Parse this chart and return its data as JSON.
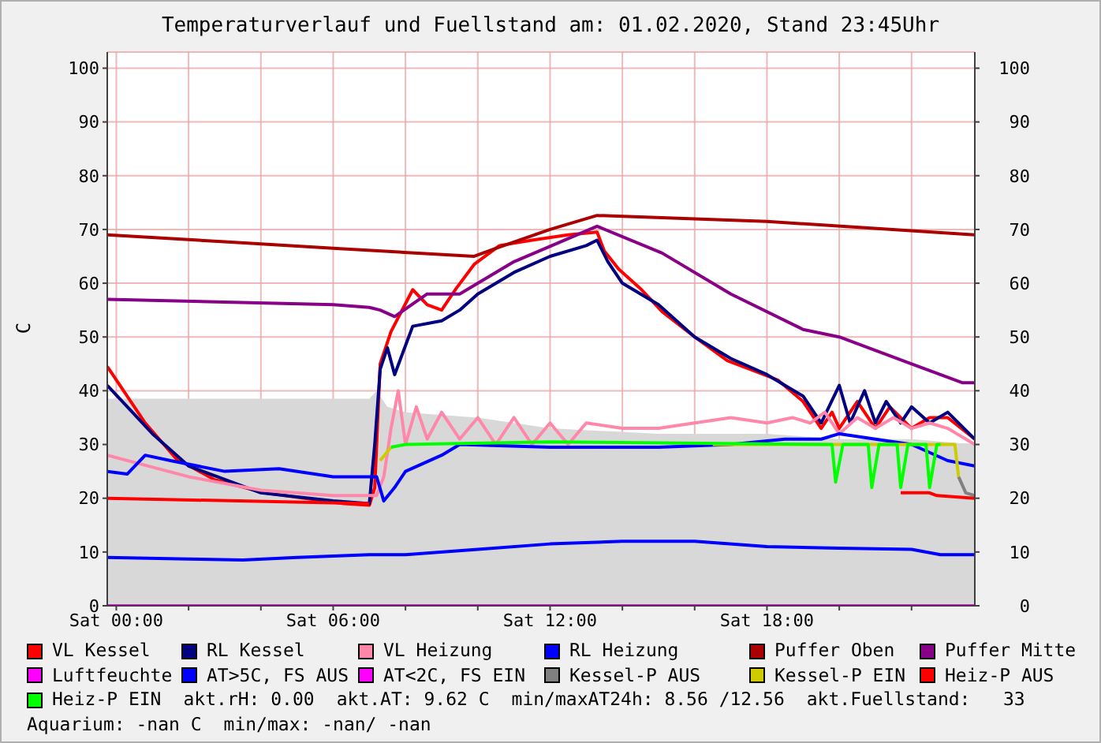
{
  "chart_data": {
    "type": "line",
    "title": "Temperaturverlauf und Fuellstand am: 01.02.2020, Stand 23:45Uhr",
    "ylabel": "C",
    "xlim": [
      "2020-01-31T23:45",
      "2020-02-01T23:45"
    ],
    "xticks": [
      {
        "value": "2020-02-01T00:00",
        "label": "Sat 00:00"
      },
      {
        "value": "2020-02-01T02:00",
        "label": null
      },
      {
        "value": "2020-02-01T04:00",
        "label": null
      },
      {
        "value": "2020-02-01T06:00",
        "label": "Sat 06:00"
      },
      {
        "value": "2020-02-01T08:00",
        "label": null
      },
      {
        "value": "2020-02-01T10:00",
        "label": null
      },
      {
        "value": "2020-02-01T12:00",
        "label": "Sat 12:00"
      },
      {
        "value": "2020-02-01T14:00",
        "label": null
      },
      {
        "value": "2020-02-01T16:00",
        "label": null
      },
      {
        "value": "2020-02-01T18:00",
        "label": "Sat 18:00"
      },
      {
        "value": "2020-02-01T20:00",
        "label": null
      },
      {
        "value": "2020-02-01T22:00",
        "label": null
      }
    ],
    "ylim": [
      0,
      103
    ],
    "yticks": [
      0,
      10,
      20,
      30,
      40,
      50,
      60,
      70,
      80,
      90,
      100
    ],
    "y2lim": [
      0,
      103
    ],
    "y2ticks": [
      0,
      10,
      20,
      30,
      40,
      50,
      60,
      70,
      80,
      90,
      100
    ],
    "grid": true,
    "legend": "bottom",
    "marker": "none",
    "line_style": "solid",
    "annotations": [
      "akt.rH: 0.00",
      "akt.AT: 9.62 C",
      "min/maxAT24h: 8.56 /12.56",
      "akt.Fuellstand:   33",
      "Aquarium: -nan C",
      "min/max: -nan/ -nan"
    ],
    "series": [
      {
        "type": "area",
        "color": "#d8d8d8",
        "x": [
          "2020-01-31T23:45",
          "2020-02-01T07:00",
          "2020-02-01T07:12",
          "2020-02-01T07:30",
          "2020-02-01T08:00",
          "2020-02-01T10:00",
          "2020-02-01T12:00",
          "2020-02-01T15:00",
          "2020-02-01T18:00",
          "2020-02-01T20:00",
          "2020-02-01T22:00",
          "2020-02-01T23:45"
        ],
        "values": [
          38.5,
          38.5,
          40,
          37,
          36,
          35,
          33,
          32,
          32,
          31,
          31,
          30
        ]
      },
      {
        "name": "VL Kessel",
        "color": "#ff0000",
        "x": [
          "2020-01-31T23:45",
          "2020-02-01T00:48",
          "2020-02-01T01:39",
          "2020-02-01T02:42",
          "2020-02-01T04:06",
          "2020-02-01T06:18",
          "2020-02-01T07:00",
          "2020-02-01T07:09",
          "2020-02-01T07:18",
          "2020-02-01T07:36",
          "2020-02-01T08:12",
          "2020-02-01T08:36",
          "2020-02-01T09:00",
          "2020-02-01T09:24",
          "2020-02-01T09:54",
          "2020-02-01T10:36",
          "2020-02-01T11:30",
          "2020-02-01T12:30",
          "2020-02-01T13:18",
          "2020-02-01T13:30",
          "2020-02-01T13:54",
          "2020-02-01T14:30",
          "2020-02-01T15:06",
          "2020-02-01T16:00",
          "2020-02-01T16:54",
          "2020-02-01T18:18",
          "2020-02-01T19:00",
          "2020-02-01T19:30",
          "2020-02-01T19:48",
          "2020-02-01T20:00",
          "2020-02-01T20:30",
          "2020-02-01T21:00",
          "2020-02-01T21:24",
          "2020-02-01T22:00",
          "2020-02-01T22:30",
          "2020-02-01T23:00",
          "2020-02-01T23:45"
        ],
        "values": [
          44.5,
          34,
          27.4,
          23.5,
          21,
          19,
          18.7,
          22,
          45,
          51,
          58.8,
          56,
          55,
          59,
          63.5,
          67,
          68,
          69,
          69.5,
          66,
          62.6,
          59,
          54.7,
          50,
          45.6,
          42,
          38,
          33,
          36,
          33,
          38,
          33,
          37,
          33,
          35,
          35,
          31
        ]
      },
      {
        "name": "RL Kessel",
        "color": "#000080",
        "x": [
          "2020-01-31T23:45",
          "2020-02-01T01:00",
          "2020-02-01T02:00",
          "2020-02-01T04:00",
          "2020-02-01T06:00",
          "2020-02-01T07:00",
          "2020-02-01T07:09",
          "2020-02-01T07:18",
          "2020-02-01T07:30",
          "2020-02-01T07:42",
          "2020-02-01T08:12",
          "2020-02-01T09:00",
          "2020-02-01T09:30",
          "2020-02-01T10:00",
          "2020-02-01T11:00",
          "2020-02-01T12:00",
          "2020-02-01T13:00",
          "2020-02-01T13:18",
          "2020-02-01T13:36",
          "2020-02-01T14:00",
          "2020-02-01T15:00",
          "2020-02-01T16:00",
          "2020-02-01T17:00",
          "2020-02-01T18:00",
          "2020-02-01T19:00",
          "2020-02-01T19:30",
          "2020-02-01T20:00",
          "2020-02-01T20:18",
          "2020-02-01T20:42",
          "2020-02-01T21:00",
          "2020-02-01T21:18",
          "2020-02-01T21:42",
          "2020-02-01T22:00",
          "2020-02-01T22:30",
          "2020-02-01T23:00",
          "2020-02-01T23:45"
        ],
        "values": [
          41,
          32,
          26,
          21,
          19.5,
          19,
          30,
          44,
          48,
          43,
          52,
          53,
          55,
          58,
          62,
          65,
          67,
          68,
          64,
          60,
          56,
          50,
          46,
          43,
          39,
          34,
          41,
          34,
          40,
          34,
          38,
          34,
          37,
          34,
          36,
          31
        ]
      },
      {
        "name": "VL Heizung",
        "color": "#ff88aa",
        "x": [
          "2020-01-31T23:45",
          "2020-02-01T02:00",
          "2020-02-01T04:00",
          "2020-02-01T06:00",
          "2020-02-01T07:12",
          "2020-02-01T07:24",
          "2020-02-01T07:36",
          "2020-02-01T07:48",
          "2020-02-01T08:00",
          "2020-02-01T08:18",
          "2020-02-01T08:36",
          "2020-02-01T09:00",
          "2020-02-01T09:30",
          "2020-02-01T10:00",
          "2020-02-01T10:30",
          "2020-02-01T11:00",
          "2020-02-01T11:30",
          "2020-02-01T12:00",
          "2020-02-01T12:30",
          "2020-02-01T13:00",
          "2020-02-01T14:00",
          "2020-02-01T15:00",
          "2020-02-01T16:00",
          "2020-02-01T17:00",
          "2020-02-01T18:00",
          "2020-02-01T18:42",
          "2020-02-01T19:12",
          "2020-02-01T19:36",
          "2020-02-01T20:00",
          "2020-02-01T20:30",
          "2020-02-01T21:00",
          "2020-02-01T21:30",
          "2020-02-01T22:00",
          "2020-02-01T22:30",
          "2020-02-01T23:00",
          "2020-02-01T23:45"
        ],
        "values": [
          28,
          24,
          21.5,
          20.5,
          20.5,
          24,
          33,
          40,
          30,
          37,
          31,
          36,
          31,
          35,
          30,
          35,
          30,
          34,
          30,
          34,
          33,
          33,
          34,
          35,
          34,
          35,
          34,
          36,
          32,
          35,
          33,
          35,
          33,
          34,
          33,
          30
        ]
      },
      {
        "name": "RL Heizung",
        "color": "#0000ff",
        "x": [
          "2020-01-31T23:45",
          "2020-02-01T00:18",
          "2020-02-01T00:48",
          "2020-02-01T01:30",
          "2020-02-01T03:00",
          "2020-02-01T04:30",
          "2020-02-01T06:00",
          "2020-02-01T07:12",
          "2020-02-01T07:24",
          "2020-02-01T07:42",
          "2020-02-01T08:00",
          "2020-02-01T09:00",
          "2020-02-01T09:30",
          "2020-02-01T12:00",
          "2020-02-01T15:00",
          "2020-02-01T17:00",
          "2020-02-01T18:30",
          "2020-02-01T19:30",
          "2020-02-01T20:00",
          "2020-02-01T21:00",
          "2020-02-01T22:00",
          "2020-02-01T23:00",
          "2020-02-01T23:45"
        ],
        "values": [
          25,
          24.5,
          28,
          27,
          25,
          25.5,
          24,
          24,
          19.5,
          22,
          25,
          28,
          30,
          29.5,
          29.5,
          30,
          31,
          31,
          32,
          31,
          30,
          27,
          26
        ]
      },
      {
        "name": "Puffer Oben",
        "color": "#aa0000",
        "x": [
          "2020-01-31T23:45",
          "2020-02-01T03:00",
          "2020-02-01T06:00",
          "2020-02-01T09:54",
          "2020-02-01T10:30",
          "2020-02-01T12:00",
          "2020-02-01T13:18",
          "2020-02-01T18:00",
          "2020-02-01T23:45"
        ],
        "values": [
          69,
          67.7,
          66.5,
          65,
          66.5,
          70,
          72.6,
          71.5,
          69
        ]
      },
      {
        "name": "Puffer Mitte",
        "color": "#880088",
        "x": [
          "2020-01-31T23:45",
          "2020-02-01T03:00",
          "2020-02-01T06:00",
          "2020-02-01T07:00",
          "2020-02-01T07:18",
          "2020-02-01T07:42",
          "2020-02-01T08:36",
          "2020-02-01T09:30",
          "2020-02-01T11:00",
          "2020-02-01T13:18",
          "2020-02-01T15:06",
          "2020-02-01T17:00",
          "2020-02-01T19:00",
          "2020-02-01T20:00",
          "2020-02-01T22:00",
          "2020-02-01T23:24",
          "2020-02-01T23:45"
        ],
        "values": [
          57,
          56.5,
          56,
          55.5,
          55,
          53.8,
          58,
          58,
          64,
          70.6,
          65.6,
          58,
          51.4,
          50,
          45,
          41.5,
          41.5
        ]
      },
      {
        "name": "Luftfeuchte",
        "color": "#ff00ff",
        "x": [
          "2020-01-31T23:45",
          "2020-02-01T23:45"
        ],
        "values": [
          0,
          0
        ]
      },
      {
        "name": "AT>5C, FS AUS",
        "color": "#0000ff",
        "x": [
          "2020-01-31T23:45",
          "2020-02-01T02:00",
          "2020-02-01T03:30",
          "2020-02-01T05:00",
          "2020-02-01T07:00",
          "2020-02-01T08:00",
          "2020-02-01T10:00",
          "2020-02-01T12:00",
          "2020-02-01T14:00",
          "2020-02-01T16:00",
          "2020-02-01T18:00",
          "2020-02-01T20:00",
          "2020-02-01T22:00",
          "2020-02-01T22:48",
          "2020-02-01T23:45"
        ],
        "values": [
          9,
          8.7,
          8.5,
          9,
          9.5,
          9.5,
          10.5,
          11.5,
          12,
          12,
          11,
          10.7,
          10.5,
          9.5,
          9.5
        ]
      },
      {
        "name": "AT<2C, FS EIN",
        "color": "#ff00ff"
      },
      {
        "name": "Kessel-P AUS",
        "color": "#808080",
        "x": [
          "2020-02-01T23:18",
          "2020-02-01T23:30",
          "2020-02-01T23:45"
        ],
        "values": [
          24,
          21,
          20.5
        ]
      },
      {
        "name": "Kessel-P EIN",
        "color": "#cccc00",
        "x": [
          "2020-02-01T07:18",
          "2020-02-01T07:36",
          "2020-02-01T12:00",
          "2020-02-01T16:30",
          "2020-02-01T23:12",
          "2020-02-01T23:18"
        ],
        "values": [
          27,
          29.5,
          null,
          30,
          30,
          24
        ]
      },
      {
        "name": "Heiz-P AUS",
        "color": "#ff0000",
        "x": [
          "2020-01-31T23:45",
          "2020-02-01T07:00",
          "2020-02-01T07:06",
          "2020-02-01T21:36",
          "2020-02-01T21:42",
          "2020-02-01T22:30",
          "2020-02-01T22:42",
          "2020-02-01T23:45"
        ],
        "values": [
          20,
          19,
          null,
          null,
          21,
          21,
          20.5,
          20
        ]
      },
      {
        "name": "Heiz-P EIN",
        "color": "#00ff00",
        "x": [
          "2020-02-01T07:36",
          "2020-02-01T08:00",
          "2020-02-01T12:00",
          "2020-02-01T19:36",
          "2020-02-01T19:48",
          "2020-02-01T19:54",
          "2020-02-01T20:06",
          "2020-02-01T20:48",
          "2020-02-01T20:54",
          "2020-02-01T21:06",
          "2020-02-01T21:36",
          "2020-02-01T21:42",
          "2020-02-01T21:54",
          "2020-02-01T22:24",
          "2020-02-01T22:30",
          "2020-02-01T22:42",
          "2020-02-01T22:48"
        ],
        "values": [
          29.5,
          30,
          30.5,
          30,
          30,
          23,
          30,
          30,
          22,
          30,
          30,
          22,
          30,
          30,
          22,
          30,
          30
        ]
      }
    ]
  }
}
